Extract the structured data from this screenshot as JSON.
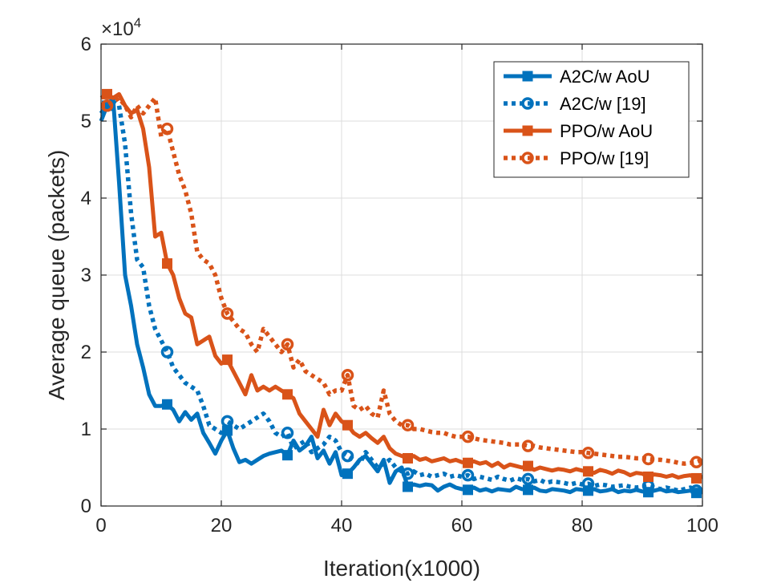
{
  "chart_data": {
    "type": "line",
    "xlabel": "Iteration(x1000)",
    "ylabel": "Average queue (packets)",
    "y_multiplier_label": "×10",
    "y_multiplier_exponent": "4",
    "xlim": [
      0,
      100
    ],
    "ylim": [
      0,
      6
    ],
    "x_ticks": [
      0,
      20,
      40,
      60,
      80,
      100
    ],
    "x_tick_labels": [
      "0",
      "20",
      "40",
      "60",
      "80",
      "100"
    ],
    "y_ticks": [
      0,
      1,
      2,
      3,
      4,
      5,
      6
    ],
    "y_tick_labels": [
      "0",
      "1",
      "2",
      "3",
      "4",
      "5",
      "6"
    ],
    "grid": true,
    "legend_position": "top-right",
    "series": [
      {
        "name": "A2C/w AoU",
        "color": "#0072BD",
        "style": "solid",
        "marker": "square",
        "x": [
          0,
          1,
          2,
          3,
          4,
          5,
          6,
          7,
          8,
          9,
          10,
          11,
          12,
          13,
          14,
          15,
          16,
          17,
          18,
          19,
          20,
          21,
          22,
          23,
          24,
          25,
          26,
          27,
          28,
          29,
          30,
          31,
          32,
          33,
          34,
          35,
          36,
          37,
          38,
          39,
          40,
          41,
          42,
          43,
          44,
          45,
          46,
          47,
          48,
          49,
          50,
          51,
          52,
          53,
          54,
          55,
          56,
          57,
          58,
          59,
          60,
          61,
          62,
          63,
          64,
          65,
          66,
          67,
          68,
          69,
          70,
          71,
          72,
          73,
          74,
          75,
          76,
          77,
          78,
          79,
          80,
          81,
          82,
          83,
          84,
          85,
          86,
          87,
          88,
          89,
          90,
          91,
          92,
          93,
          94,
          95,
          96,
          97,
          98,
          99,
          100
        ],
        "y": [
          5.0,
          5.2,
          5.3,
          4.2,
          3.0,
          2.6,
          2.1,
          1.8,
          1.45,
          1.3,
          1.3,
          1.32,
          1.25,
          1.1,
          1.22,
          1.12,
          1.2,
          0.95,
          0.82,
          0.68,
          0.85,
          0.98,
          0.75,
          0.57,
          0.6,
          0.55,
          0.6,
          0.65,
          0.68,
          0.7,
          0.72,
          0.66,
          0.85,
          0.72,
          0.78,
          0.9,
          0.62,
          0.72,
          0.55,
          0.7,
          0.4,
          0.42,
          0.5,
          0.6,
          0.65,
          0.55,
          0.45,
          0.6,
          0.3,
          0.45,
          0.5,
          0.25,
          0.28,
          0.26,
          0.28,
          0.27,
          0.2,
          0.25,
          0.28,
          0.24,
          0.22,
          0.21,
          0.24,
          0.2,
          0.22,
          0.19,
          0.22,
          0.21,
          0.2,
          0.25,
          0.22,
          0.21,
          0.24,
          0.2,
          0.19,
          0.22,
          0.21,
          0.2,
          0.18,
          0.22,
          0.21,
          0.2,
          0.22,
          0.19,
          0.2,
          0.22,
          0.18,
          0.2,
          0.19,
          0.21,
          0.19,
          0.18,
          0.2,
          0.22,
          0.19,
          0.2,
          0.18,
          0.19,
          0.2,
          0.17,
          0.18
        ],
        "marker_x": [
          1,
          11,
          21,
          31,
          41,
          51,
          61,
          71,
          81,
          91,
          99
        ]
      },
      {
        "name": "A2C/w [19]",
        "color": "#0072BD",
        "style": "dotted",
        "marker": "circle",
        "x": [
          0,
          1,
          2,
          3,
          4,
          5,
          6,
          7,
          8,
          9,
          10,
          11,
          12,
          13,
          14,
          15,
          16,
          17,
          18,
          19,
          20,
          21,
          22,
          23,
          24,
          25,
          26,
          27,
          28,
          29,
          30,
          31,
          32,
          33,
          34,
          35,
          36,
          37,
          38,
          39,
          40,
          41,
          42,
          43,
          44,
          45,
          46,
          47,
          48,
          49,
          50,
          51,
          52,
          53,
          54,
          55,
          56,
          57,
          58,
          59,
          60,
          61,
          62,
          63,
          64,
          65,
          66,
          67,
          68,
          69,
          70,
          71,
          72,
          73,
          74,
          75,
          76,
          77,
          78,
          79,
          80,
          81,
          82,
          83,
          84,
          85,
          86,
          87,
          88,
          89,
          90,
          91,
          92,
          93,
          94,
          95,
          96,
          97,
          98,
          99,
          100
        ],
        "y": [
          5.1,
          5.2,
          5.25,
          5.2,
          4.7,
          3.8,
          3.2,
          3.1,
          2.6,
          2.3,
          2.15,
          2.0,
          1.8,
          1.7,
          1.6,
          1.55,
          1.5,
          1.3,
          1.05,
          1.0,
          0.95,
          1.1,
          1.05,
          1.0,
          1.05,
          1.1,
          1.15,
          1.2,
          1.1,
          0.95,
          0.9,
          0.95,
          0.75,
          0.8,
          0.85,
          0.7,
          0.75,
          0.8,
          0.9,
          0.85,
          0.7,
          0.65,
          0.6,
          0.55,
          0.7,
          0.6,
          0.5,
          0.55,
          0.6,
          0.5,
          0.45,
          0.42,
          0.45,
          0.4,
          0.42,
          0.38,
          0.4,
          0.42,
          0.38,
          0.4,
          0.38,
          0.4,
          0.35,
          0.38,
          0.36,
          0.34,
          0.38,
          0.35,
          0.33,
          0.36,
          0.34,
          0.35,
          0.32,
          0.34,
          0.3,
          0.32,
          0.31,
          0.3,
          0.28,
          0.3,
          0.28,
          0.29,
          0.26,
          0.28,
          0.27,
          0.25,
          0.26,
          0.27,
          0.25,
          0.24,
          0.25,
          0.26,
          0.24,
          0.22,
          0.24,
          0.22,
          0.2,
          0.22,
          0.24,
          0.2,
          0.22
        ],
        "marker_x": [
          1,
          11,
          21,
          31,
          41,
          51,
          61,
          71,
          81,
          91,
          99
        ]
      },
      {
        "name": "PPO/w AoU",
        "color": "#D95319",
        "style": "solid",
        "marker": "square",
        "x": [
          0,
          1,
          2,
          3,
          4,
          5,
          6,
          7,
          8,
          9,
          10,
          11,
          12,
          13,
          14,
          15,
          16,
          17,
          18,
          19,
          20,
          21,
          22,
          23,
          24,
          25,
          26,
          27,
          28,
          29,
          30,
          31,
          32,
          33,
          34,
          35,
          36,
          37,
          38,
          39,
          40,
          41,
          42,
          43,
          44,
          45,
          46,
          47,
          48,
          49,
          50,
          51,
          52,
          53,
          54,
          55,
          56,
          57,
          58,
          59,
          60,
          61,
          62,
          63,
          64,
          65,
          66,
          67,
          68,
          69,
          70,
          71,
          72,
          73,
          74,
          75,
          76,
          77,
          78,
          79,
          80,
          81,
          82,
          83,
          84,
          85,
          86,
          87,
          88,
          89,
          90,
          91,
          92,
          93,
          94,
          95,
          96,
          97,
          98,
          99,
          100
        ],
        "y": [
          5.3,
          5.35,
          5.3,
          5.35,
          5.2,
          5.1,
          5.15,
          4.9,
          4.4,
          3.5,
          3.55,
          3.15,
          3.0,
          2.7,
          2.5,
          2.45,
          2.1,
          2.15,
          2.2,
          1.95,
          1.85,
          1.9,
          1.75,
          1.6,
          1.45,
          1.7,
          1.5,
          1.55,
          1.5,
          1.55,
          1.5,
          1.45,
          1.4,
          1.2,
          1.1,
          1.0,
          0.9,
          1.25,
          1.05,
          1.2,
          1.1,
          1.05,
          0.95,
          0.9,
          0.95,
          0.88,
          0.82,
          0.9,
          0.75,
          0.68,
          0.65,
          0.62,
          0.65,
          0.6,
          0.62,
          0.58,
          0.6,
          0.62,
          0.58,
          0.6,
          0.57,
          0.56,
          0.58,
          0.55,
          0.57,
          0.52,
          0.56,
          0.5,
          0.54,
          0.52,
          0.5,
          0.52,
          0.47,
          0.5,
          0.48,
          0.46,
          0.48,
          0.47,
          0.45,
          0.48,
          0.46,
          0.45,
          0.43,
          0.47,
          0.45,
          0.42,
          0.46,
          0.44,
          0.4,
          0.43,
          0.42,
          0.38,
          0.41,
          0.4,
          0.38,
          0.4,
          0.37,
          0.39,
          0.4,
          0.36,
          0.38
        ],
        "marker_x": [
          1,
          11,
          21,
          31,
          41,
          51,
          61,
          71,
          81,
          91,
          99
        ]
      },
      {
        "name": "PPO/w [19]",
        "color": "#D95319",
        "style": "dotted",
        "marker": "circle",
        "x": [
          0,
          1,
          2,
          3,
          4,
          5,
          6,
          7,
          8,
          9,
          10,
          11,
          12,
          13,
          14,
          15,
          16,
          17,
          18,
          19,
          20,
          21,
          22,
          23,
          24,
          25,
          26,
          27,
          28,
          29,
          30,
          31,
          32,
          33,
          34,
          35,
          36,
          37,
          38,
          39,
          40,
          41,
          42,
          43,
          44,
          45,
          46,
          47,
          48,
          49,
          50,
          51,
          52,
          53,
          54,
          55,
          56,
          57,
          58,
          59,
          60,
          61,
          62,
          63,
          64,
          65,
          66,
          67,
          68,
          69,
          70,
          71,
          72,
          73,
          74,
          75,
          76,
          77,
          78,
          79,
          80,
          81,
          82,
          83,
          84,
          85,
          86,
          87,
          88,
          89,
          90,
          91,
          92,
          93,
          94,
          95,
          96,
          97,
          98,
          99,
          100
        ],
        "y": [
          5.2,
          5.2,
          5.25,
          5.3,
          5.2,
          5.05,
          5.2,
          5.1,
          5.2,
          5.3,
          4.8,
          4.9,
          4.6,
          4.3,
          4.1,
          3.8,
          3.3,
          3.2,
          3.15,
          3.0,
          2.7,
          2.5,
          2.4,
          2.3,
          2.25,
          2.1,
          2.0,
          2.3,
          2.2,
          2.1,
          2.0,
          2.1,
          1.8,
          1.9,
          1.75,
          1.7,
          1.65,
          1.6,
          1.45,
          1.5,
          1.5,
          1.7,
          1.3,
          1.25,
          1.3,
          1.2,
          1.15,
          1.5,
          1.2,
          1.1,
          1.05,
          1.05,
          1.0,
          1.0,
          0.98,
          0.96,
          0.95,
          0.95,
          0.92,
          0.9,
          0.9,
          0.9,
          0.88,
          0.86,
          0.85,
          0.84,
          0.83,
          0.82,
          0.8,
          0.8,
          0.8,
          0.78,
          0.78,
          0.76,
          0.75,
          0.74,
          0.73,
          0.72,
          0.71,
          0.7,
          0.7,
          0.69,
          0.68,
          0.67,
          0.66,
          0.65,
          0.64,
          0.64,
          0.63,
          0.62,
          0.62,
          0.61,
          0.6,
          0.6,
          0.59,
          0.58,
          0.56,
          0.55,
          0.56,
          0.57,
          0.6
        ],
        "marker_x": [
          1,
          11,
          21,
          31,
          41,
          51,
          61,
          71,
          81,
          91,
          99
        ]
      }
    ]
  }
}
